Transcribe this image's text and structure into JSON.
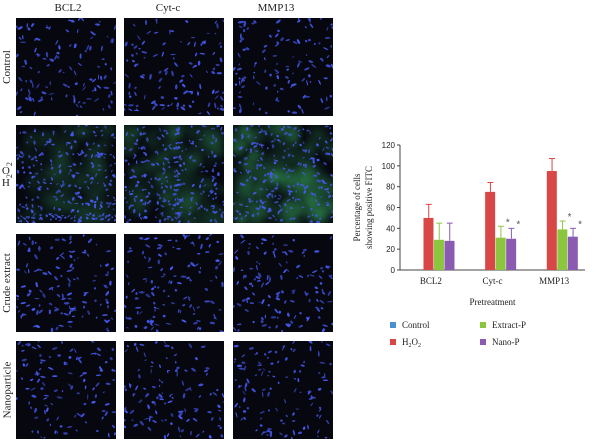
{
  "figure": {
    "column_headers": [
      "BCL2",
      "Cyt-c",
      "MMP13"
    ],
    "row_labels": [
      {
        "main": "Control",
        "sub": ""
      },
      {
        "main": "H",
        "sub": "2",
        "main2": "O",
        "sub2": "2"
      },
      {
        "main": "Crude extract",
        "sub": ""
      },
      {
        "main": "Nanoparticle",
        "sub": ""
      }
    ],
    "panels": [
      {
        "row": "Control",
        "density": 0.45,
        "green": 0.0
      },
      {
        "row": "H2O2",
        "density": 1.0,
        "green": 0.3
      },
      {
        "row": "Crude extract",
        "density": 0.5,
        "green": 0.0
      },
      {
        "row": "Nanoparticle",
        "density": 0.45,
        "green": 0.0
      }
    ],
    "h2o2_green_by_column": [
      0.25,
      0.35,
      0.6
    ],
    "colors": {
      "nuclei": "#3a4fd6",
      "fitc": "#3fbf6a",
      "background": "#06070f"
    }
  },
  "chart_data": {
    "type": "bar",
    "categories": [
      "BCL2",
      "Cyt-c",
      "MMP13"
    ],
    "series": [
      {
        "name": "Control",
        "values": [
          null,
          null,
          null
        ],
        "errors": [
          null,
          null,
          null
        ],
        "color": "#4a8fd2"
      },
      {
        "name": "H2O2",
        "values": [
          50,
          75,
          95
        ],
        "errors": [
          13,
          9,
          12
        ],
        "color": "#d94646"
      },
      {
        "name": "Extract-P",
        "values": [
          29,
          31,
          39
        ],
        "errors": [
          16,
          11,
          8
        ],
        "color": "#8cc63e"
      },
      {
        "name": "Nano-P",
        "values": [
          28,
          30,
          32
        ],
        "errors": [
          17,
          10,
          8
        ],
        "color": "#8a5bb0"
      }
    ],
    "significance": [
      {
        "category": "Cyt-c",
        "series": "Extract-P",
        "mark": "*"
      },
      {
        "category": "Cyt-c",
        "series": "Nano-P",
        "mark": "*"
      },
      {
        "category": "MMP13",
        "series": "Extract-P",
        "mark": "*"
      },
      {
        "category": "MMP13",
        "series": "Nano-P",
        "mark": "*"
      }
    ],
    "ylim": [
      0,
      120
    ],
    "yticks": [
      0,
      20,
      40,
      60,
      80,
      100,
      120
    ],
    "ylabel_line1": "Percentage of cells",
    "ylabel_line2": "showing positive FITC",
    "xlabel": "Pretreatment",
    "legend": {
      "placement": "bottom",
      "items": [
        {
          "label": "Control",
          "sub": "",
          "color": "#4a8fd2"
        },
        {
          "label": "Extract-P",
          "sub": "",
          "color": "#8cc63e"
        },
        {
          "label": "H",
          "sub": "2",
          "label2": "O",
          "sub2": "2",
          "color": "#d94646"
        },
        {
          "label": "Nano-P",
          "sub": "",
          "color": "#8a5bb0"
        }
      ]
    }
  }
}
